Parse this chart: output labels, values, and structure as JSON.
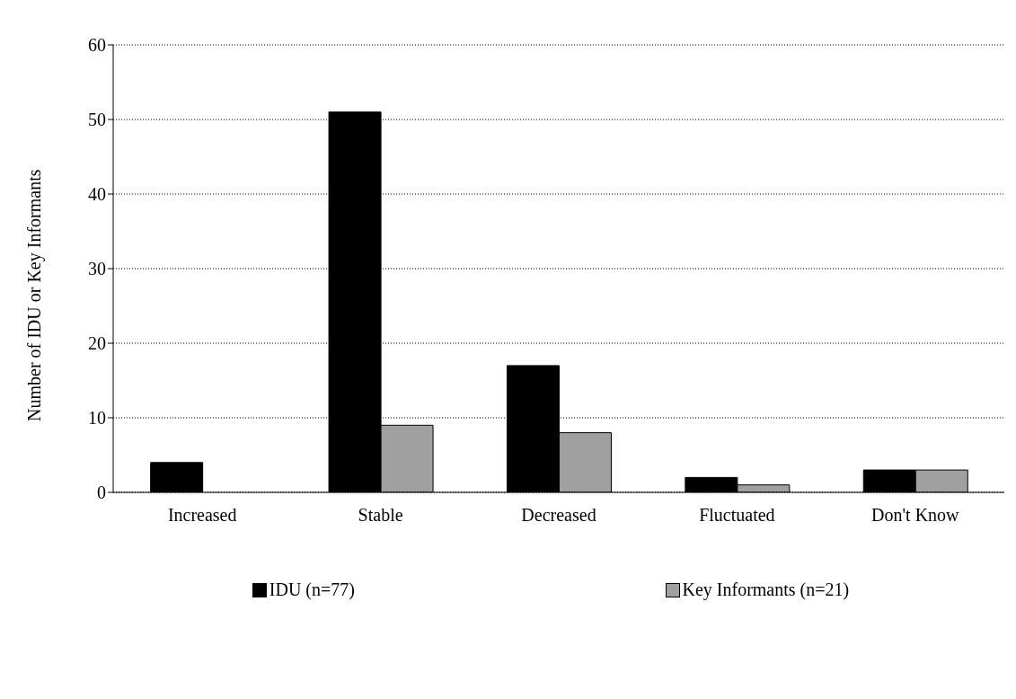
{
  "chart_data": {
    "type": "bar",
    "ylabel": "Number of IDU or Key Informants",
    "categories": [
      "Increased",
      "Stable",
      "Decreased",
      "Fluctuated",
      "Don't Know"
    ],
    "series": [
      {
        "name": "IDU (n=77)",
        "color": "#000000",
        "values": [
          4,
          51,
          17,
          2,
          3
        ]
      },
      {
        "name": "Key Informants (n=21)",
        "color": "#a0a0a0",
        "values": [
          0,
          9,
          8,
          1,
          3
        ]
      }
    ],
    "ylim": [
      0,
      60
    ],
    "yticks": [
      0,
      10,
      20,
      30,
      40,
      50,
      60
    ],
    "grid": "y",
    "legend": "bottom"
  }
}
